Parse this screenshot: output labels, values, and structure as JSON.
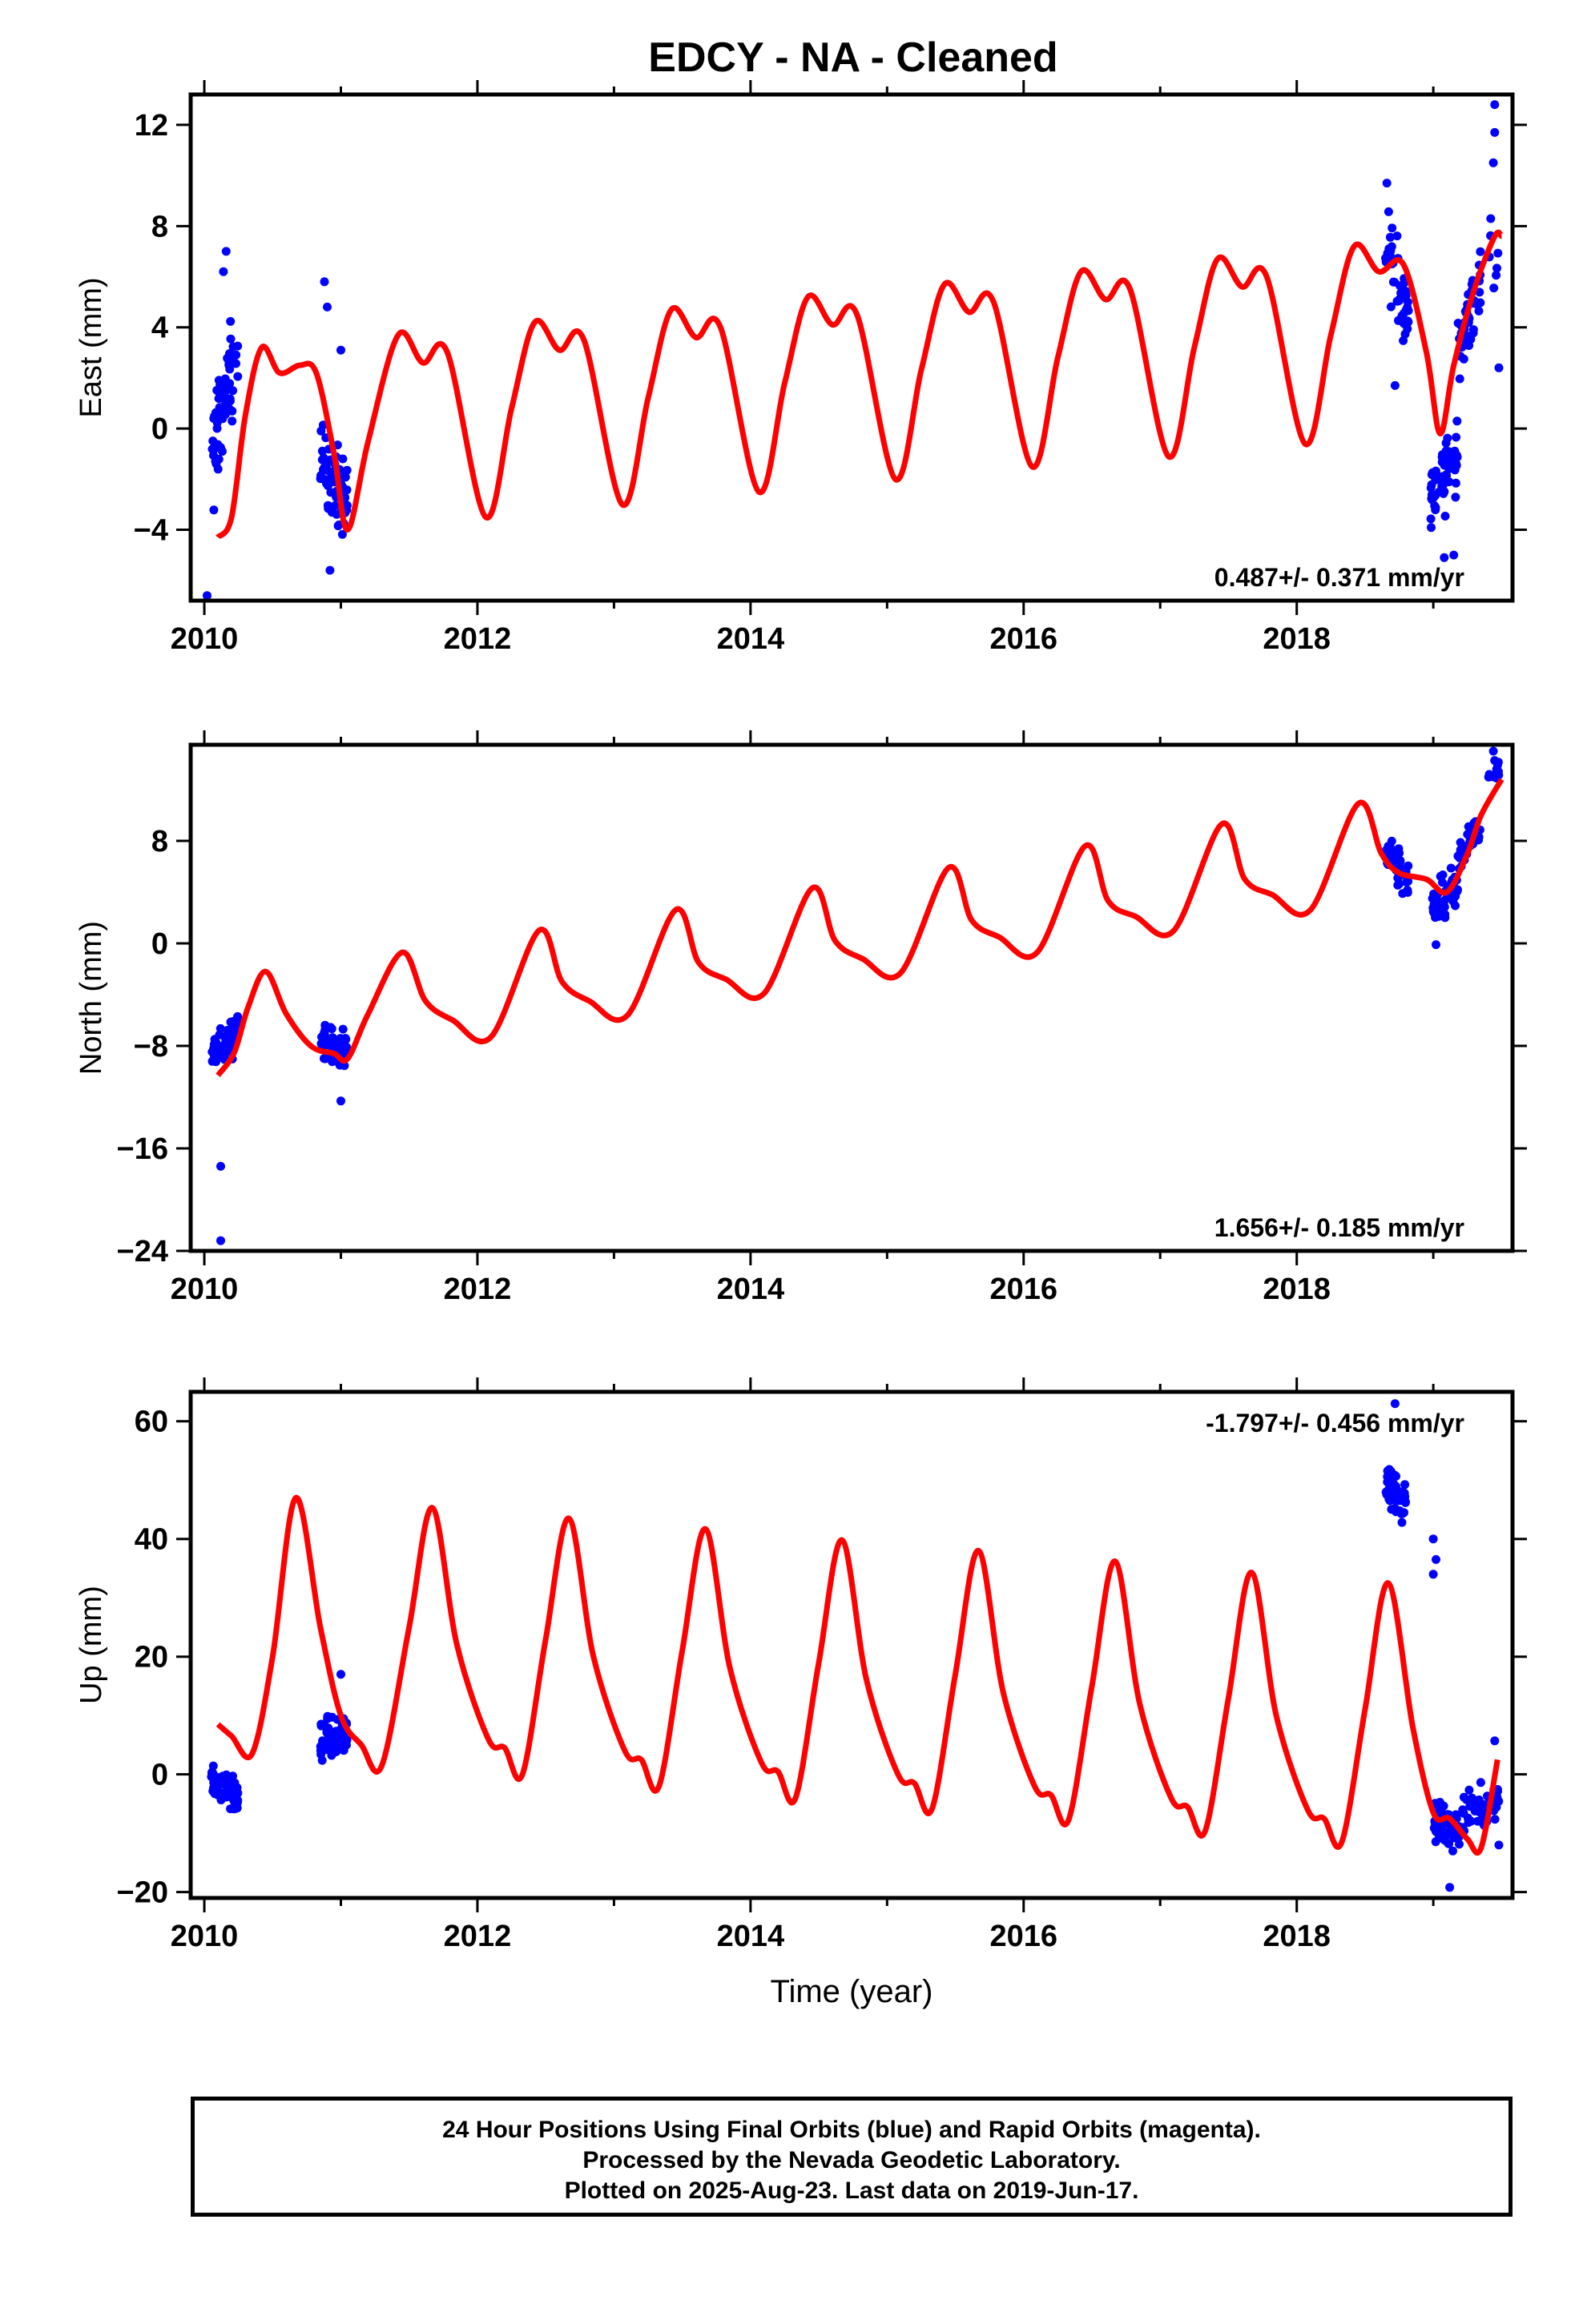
{
  "title": "EDCY  - NA - Cleaned",
  "colors": {
    "points": "#0000ff",
    "model": "#ff0000",
    "frame": "#000000"
  },
  "caption": [
    "24 Hour Positions Using Final Orbits (blue) and Rapid Orbits (magenta).",
    "Processed by the Nevada Geodetic Laboratory.",
    "Plotted on 2025-Aug-23. Last data on 2019-Jun-17."
  ],
  "chart_data": [
    {
      "type": "scatter",
      "ylabel": "East (mm)",
      "xlabel": "",
      "xlim": [
        2009.9,
        2019.58
      ],
      "ylim": [
        -6.8,
        13.2
      ],
      "xticks": [
        2010,
        2012,
        2014,
        2016,
        2018
      ],
      "xtick_labels": [
        "2010",
        "2012",
        "2014",
        "2016",
        "2018"
      ],
      "yticks": [
        -4,
        0,
        4,
        8,
        12
      ],
      "ytick_labels": [
        "−4",
        "0",
        "4",
        "8",
        "12"
      ],
      "rate": "0.487+/- 0.371 mm/yr",
      "rate_position": "bottom-right",
      "model": {
        "x": [
          2010.1,
          2010.2,
          2010.3,
          2010.42,
          2010.55,
          2010.7,
          2010.82,
          2010.95,
          2011.05,
          2011.2,
          2011.42,
          2011.6,
          2011.78,
          2012.06,
          2012.25,
          2012.42,
          2012.6,
          2012.78,
          2013.06,
          2013.25,
          2013.42,
          2013.6,
          2013.78,
          2014.06,
          2014.25,
          2014.42,
          2014.6,
          2014.78,
          2015.06,
          2015.25,
          2015.42,
          2015.6,
          2015.78,
          2016.06,
          2016.25,
          2016.42,
          2016.6,
          2016.78,
          2017.06,
          2017.25,
          2017.42,
          2017.6,
          2017.78,
          2018.06,
          2018.25,
          2018.42,
          2018.6,
          2018.78,
          2018.95,
          2019.05,
          2019.15,
          2019.3,
          2019.45,
          2019.5
        ],
        "y": [
          -4.3,
          -3.5,
          0.5,
          3.2,
          2.2,
          2.5,
          2.2,
          -1.0,
          -4.0,
          -0.5,
          3.7,
          2.6,
          3.0,
          -3.5,
          0.8,
          4.2,
          3.1,
          3.5,
          -3.0,
          1.2,
          4.7,
          3.6,
          4.0,
          -2.5,
          1.8,
          5.2,
          4.1,
          4.5,
          -2.0,
          2.3,
          5.7,
          4.6,
          5.0,
          -1.5,
          2.8,
          6.2,
          5.1,
          5.5,
          -1.1,
          3.2,
          6.7,
          5.6,
          6.0,
          -0.6,
          3.7,
          7.2,
          6.2,
          6.5,
          3.0,
          -0.2,
          2.5,
          5.5,
          7.6,
          7.6
        ]
      },
      "clusters": [
        {
          "x": [
            2010.05,
            2010.25
          ],
          "center": [
            -1.5,
            3.5
          ],
          "spread": 1.4,
          "n": 70
        },
        {
          "x": [
            2010.85,
            2011.05
          ],
          "center": [
            -1.0,
            -3.0
          ],
          "spread": 1.1,
          "n": 60
        },
        {
          "x": [
            2018.65,
            2018.82
          ],
          "center": [
            7.5,
            4.0
          ],
          "spread": 1.1,
          "n": 50
        },
        {
          "x": [
            2018.98,
            2019.18
          ],
          "center": [
            -2.5,
            -1.0
          ],
          "spread": 1.0,
          "n": 60
        },
        {
          "x": [
            2019.18,
            2019.35
          ],
          "center": [
            3.0,
            6.0
          ],
          "spread": 1.0,
          "n": 45
        },
        {
          "x": [
            2019.4,
            2019.48
          ],
          "center": [
            7.0,
            7.0
          ],
          "spread": 0.8,
          "n": 8
        }
      ],
      "outliers": [
        [
          2010.16,
          7.0
        ],
        [
          2010.14,
          6.2
        ],
        [
          2010.02,
          -6.6
        ],
        [
          2010.88,
          5.8
        ],
        [
          2010.9,
          4.8
        ],
        [
          2011.0,
          3.1
        ],
        [
          2010.92,
          -5.6
        ],
        [
          2018.72,
          1.7
        ],
        [
          2018.66,
          9.7
        ],
        [
          2019.08,
          -5.1
        ],
        [
          2019.15,
          -5.0
        ],
        [
          2019.45,
          12.8
        ],
        [
          2019.45,
          11.7
        ],
        [
          2019.44,
          10.5
        ],
        [
          2019.48,
          2.4
        ]
      ]
    },
    {
      "type": "scatter",
      "ylabel": "North (mm)",
      "xlabel": "",
      "xlim": [
        2009.9,
        2019.58
      ],
      "ylim": [
        -24,
        15.5
      ],
      "xticks": [
        2010,
        2012,
        2014,
        2016,
        2018
      ],
      "xtick_labels": [
        "2010",
        "2012",
        "2014",
        "2016",
        "2018"
      ],
      "yticks": [
        -24,
        -16,
        -8,
        0,
        8
      ],
      "ytick_labels": [
        "−24",
        "−16",
        "−8",
        "0",
        "8"
      ],
      "rate": "1.656+/- 0.185 mm/yr",
      "rate_position": "bottom-right",
      "model": {
        "x": [
          2010.1,
          2010.22,
          2010.32,
          2010.45,
          2010.6,
          2010.78,
          2010.95,
          2011.05,
          2011.2,
          2011.45,
          2011.62,
          2011.82,
          2012.1,
          2012.45,
          2012.62,
          2012.82,
          2013.1,
          2013.45,
          2013.62,
          2013.82,
          2014.1,
          2014.45,
          2014.62,
          2014.82,
          2015.1,
          2015.45,
          2015.62,
          2015.82,
          2016.1,
          2016.45,
          2016.62,
          2016.82,
          2017.1,
          2017.45,
          2017.62,
          2017.82,
          2018.1,
          2018.45,
          2018.62,
          2018.75,
          2018.95,
          2019.1,
          2019.25,
          2019.35,
          2019.5
        ],
        "y": [
          -10.3,
          -8.5,
          -5.0,
          -2.2,
          -5.5,
          -8.0,
          -8.6,
          -9.0,
          -5.5,
          -0.7,
          -4.5,
          -6.0,
          -7.3,
          1.0,
          -3.0,
          -4.5,
          -5.6,
          2.6,
          -1.5,
          -2.8,
          -3.9,
          4.3,
          0.2,
          -1.2,
          -2.3,
          5.9,
          1.8,
          0.5,
          -0.7,
          7.6,
          3.3,
          2.1,
          1.0,
          9.3,
          5.0,
          3.8,
          2.6,
          10.9,
          7.0,
          5.5,
          5.0,
          4.0,
          7.0,
          10.0,
          12.8
        ]
      },
      "clusters": [
        {
          "x": [
            2010.05,
            2010.25
          ],
          "center": [
            -8.5,
            -7.0
          ],
          "spread": 1.0,
          "n": 70
        },
        {
          "x": [
            2010.85,
            2011.05
          ],
          "center": [
            -7.5,
            -8.3
          ],
          "spread": 0.9,
          "n": 60
        },
        {
          "x": [
            2018.65,
            2018.82
          ],
          "center": [
            7.0,
            4.8
          ],
          "spread": 1.0,
          "n": 45
        },
        {
          "x": [
            2018.98,
            2019.18
          ],
          "center": [
            2.5,
            5.0
          ],
          "spread": 1.2,
          "n": 55
        },
        {
          "x": [
            2019.18,
            2019.35
          ],
          "center": [
            6.5,
            9.0
          ],
          "spread": 0.8,
          "n": 40
        },
        {
          "x": [
            2019.4,
            2019.48
          ],
          "center": [
            13.5,
            13.5
          ],
          "spread": 0.6,
          "n": 12
        }
      ],
      "outliers": [
        [
          2010.12,
          -17.4
        ],
        [
          2010.12,
          -23.2
        ],
        [
          2011.0,
          -12.3
        ],
        [
          2019.02,
          -0.1
        ],
        [
          2019.44,
          15.0
        ]
      ]
    },
    {
      "type": "scatter",
      "ylabel": "Up (mm)",
      "xlabel": "Time (year)",
      "xlim": [
        2009.9,
        2019.58
      ],
      "ylim": [
        -21,
        65
      ],
      "xticks": [
        2010,
        2012,
        2014,
        2016,
        2018
      ],
      "xtick_labels": [
        "2010",
        "2012",
        "2014",
        "2016",
        "2018"
      ],
      "yticks": [
        -20,
        0,
        20,
        40,
        60
      ],
      "ytick_labels": [
        "−20",
        "0",
        "20",
        "40",
        "60"
      ],
      "rate": "-1.797+/- 0.456 mm/yr",
      "rate_position": "top-right",
      "model": {
        "x": [
          2010.1,
          2010.2,
          2010.35,
          2010.5,
          2010.67,
          2010.85,
          2011.0,
          2011.15,
          2011.3,
          2011.5,
          2011.67,
          2011.85,
          2012.08,
          2012.2,
          2012.33,
          2012.5,
          2012.67,
          2012.85,
          2013.08,
          2013.2,
          2013.33,
          2013.5,
          2013.67,
          2013.85,
          2014.08,
          2014.2,
          2014.33,
          2014.5,
          2014.67,
          2014.85,
          2015.08,
          2015.2,
          2015.33,
          2015.5,
          2015.67,
          2015.85,
          2016.08,
          2016.2,
          2016.33,
          2016.5,
          2016.67,
          2016.85,
          2017.08,
          2017.2,
          2017.33,
          2017.5,
          2017.67,
          2017.85,
          2018.08,
          2018.2,
          2018.33,
          2018.5,
          2018.67,
          2018.85,
          2019.0,
          2019.12,
          2019.25,
          2019.35,
          2019.47
        ],
        "y": [
          8.5,
          6.5,
          3.5,
          20.0,
          47.0,
          25.0,
          10.0,
          5.0,
          1.5,
          25.0,
          45.3,
          22.0,
          6.0,
          4.5,
          0.0,
          23.0,
          43.5,
          20.0,
          4.0,
          2.5,
          -2.0,
          21.0,
          41.7,
          18.0,
          2.0,
          0.5,
          -4.0,
          19.0,
          39.8,
          16.0,
          0.0,
          -1.5,
          -5.8,
          17.0,
          38.0,
          14.0,
          -2.0,
          -3.5,
          -7.7,
          15.0,
          36.2,
          12.0,
          -4.0,
          -5.5,
          -9.6,
          13.0,
          34.3,
          10.0,
          -6.0,
          -7.5,
          -11.5,
          11.0,
          32.5,
          8.0,
          -6.5,
          -7.5,
          -11.0,
          -12.5,
          2.5
        ]
      },
      "clusters": [
        {
          "x": [
            2010.05,
            2010.25
          ],
          "center": [
            -1.5,
            -4.0
          ],
          "spread": 2.0,
          "n": 70
        },
        {
          "x": [
            2010.85,
            2011.05
          ],
          "center": [
            5.0,
            7.0
          ],
          "spread": 2.8,
          "n": 70
        },
        {
          "x": [
            2018.65,
            2018.8
          ],
          "center": [
            50.0,
            45.0
          ],
          "spread": 2.8,
          "n": 60
        },
        {
          "x": [
            2019.0,
            2019.2
          ],
          "center": [
            -8.0,
            -10.0
          ],
          "spread": 2.5,
          "n": 60
        },
        {
          "x": [
            2019.2,
            2019.48
          ],
          "center": [
            -7.0,
            -5.0
          ],
          "spread": 2.5,
          "n": 45
        }
      ],
      "outliers": [
        [
          2018.72,
          63.0
        ],
        [
          2019.0,
          40.0
        ],
        [
          2019.02,
          36.5
        ],
        [
          2019.0,
          34.0
        ],
        [
          2011.0,
          17.0
        ],
        [
          2019.12,
          -19.2
        ],
        [
          2019.45,
          5.7
        ],
        [
          2019.48,
          -12.0
        ]
      ]
    }
  ]
}
